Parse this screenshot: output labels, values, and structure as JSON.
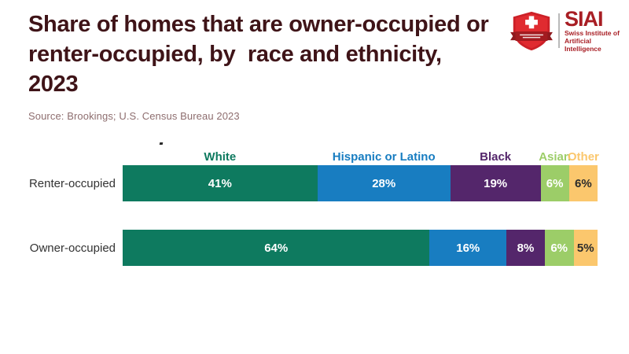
{
  "header": {
    "title_lines": [
      "Share of homes that are owner-occupied or",
      "renter-occupied, by  race and ethnicity,",
      "2023"
    ],
    "source": "Source: Brookings; U.S. Census Bureau 2023"
  },
  "logo": {
    "acronym": "SIAI",
    "subtitle_line1": "Swiss Institute of",
    "subtitle_line2": "Artificial Intelligence",
    "brand_color": "#a81e24",
    "shield_color": "#cc2128",
    "banner_color": "#8f191e"
  },
  "chart_data": {
    "type": "bar",
    "variant": "horizontal-stacked-100",
    "title": "Share of homes that are owner-occupied or renter-occupied, by race and ethnicity, 2023",
    "source": "Source: Brookings; U.S. Census Bureau 2023",
    "categories": [
      "Renter-occupied",
      "Owner-occupied"
    ],
    "series": [
      {
        "name": "White",
        "color": "#0e7a5f",
        "label_color": "#ffffff",
        "values": [
          41,
          64
        ]
      },
      {
        "name": "Hispanic or Latino",
        "color": "#187dc1",
        "label_color": "#ffffff",
        "values": [
          28,
          16
        ]
      },
      {
        "name": "Black",
        "color": "#54266b",
        "label_color": "#ffffff",
        "values": [
          19,
          8
        ]
      },
      {
        "name": "Asian",
        "color": "#9ccd68",
        "label_color": "#ffffff",
        "values": [
          6,
          6
        ]
      },
      {
        "name": "Other",
        "color": "#fbc76d",
        "label_color": "#2b2b2b",
        "values": [
          6,
          5
        ]
      }
    ],
    "value_suffix": "%",
    "legend_position": "top",
    "axis": {
      "xlim": [
        0,
        100
      ],
      "grid": false
    }
  },
  "colors": {
    "title": "#3f1418",
    "source": "#8e6e6f",
    "row_label": "#333333",
    "background": "#ffffff"
  }
}
